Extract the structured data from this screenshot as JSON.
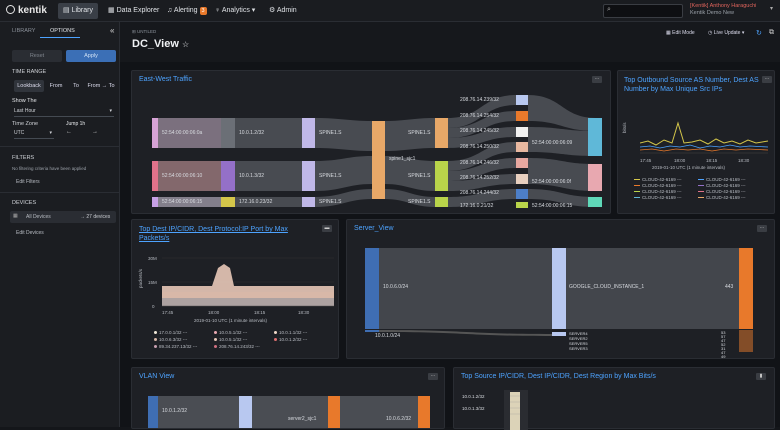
{
  "topbar": {
    "logo": "kentik",
    "nav": [
      {
        "label": "Library"
      },
      {
        "label": "Data Explorer"
      },
      {
        "label": "Alerting",
        "badge": "3"
      },
      {
        "label": "Analytics ▾"
      },
      {
        "label": "Admin"
      }
    ],
    "user_name": "[Kentik] Anthony Haraguchi",
    "user_org": "Kentik Demo New"
  },
  "sidebar": {
    "tabs": [
      "LIBRARY",
      "OPTIONS"
    ],
    "reset": "Reset",
    "apply": "Apply",
    "time_range": "TIME RANGE",
    "lookback": "Lookback",
    "from": "From",
    "to": "To",
    "from_to": "From → To",
    "show_the": "Show The",
    "last_hour": "Last Hour",
    "time_zone": "Time Zone",
    "jump": "Jump 1h",
    "utc": "UTC",
    "filters": "FILTERS",
    "no_filter": "No filtering criteria have been applied",
    "edit_filters": "Edit Filters",
    "devices": "DEVICES",
    "all_devices": "All Devices",
    "device_count": "27 devices",
    "edit_devices": "Edit Devices"
  },
  "header": {
    "breadcrumb": "UNTILED",
    "title": "DC_View",
    "edit_mode": "Edit Mode",
    "live_update": "Live Update"
  },
  "panels": {
    "east_west": {
      "title": "East-West Traffic",
      "nodes_l1": [
        "52:54:00:00:06:0a",
        "52:54:00:00:06:10",
        "52:54:00:00:06:15"
      ],
      "nodes_l2": [
        "10.0.1.2/32",
        "10.0.1.3/32",
        "172.16.0.23/32"
      ],
      "nodes_l3": [
        "SPINE1.S",
        "SPINE1.S",
        "SPINE1.S"
      ],
      "center": "spine1_sjc1",
      "nodes_l5": [
        "SPINE1.S",
        "SPINE1.S",
        "SPINE1.S"
      ],
      "nodes_l6": [
        "208.76.14.239/32",
        "208.76.14.254/32",
        "208.76.14.245/32",
        "208.76.14.250/32",
        "208.76.14.246/32",
        "208.76.14.252/32",
        "208.76.14.244/32",
        "172.16.0.21/32"
      ],
      "nodes_l7": [
        "52:54:00:00:06:09",
        "52:54:00:00:06:0f",
        "52:54:00:00:06:15"
      ]
    },
    "outbound": {
      "title": "Top Outbound Source AS Number, Dest AS Number by Max Unique Src IPs",
      "ylabel": "bits/s",
      "xticks": [
        "17:45",
        "18:00",
        "18:15",
        "18:30"
      ],
      "xlabel": "2019-01-10 UTC (1 minute intervals)",
      "legend": [
        "CLOUD-42-6169 ---",
        "CLOUD-42-6169 ---",
        "CLOUD-42-6169 ---",
        "CLOUD-42-6169 ---",
        "CLOUD-42-6169 ---",
        "CLOUD-42-6169 ---",
        "CLOUD-42-6169 ---",
        "CLOUD-42-6169 ---"
      ]
    },
    "dest_ip": {
      "title": "Top Dest IP/CIDR, Dest Protocol:IP Port by Max Packets/s",
      "ylabel": "packets/s",
      "yticks": [
        "30M",
        "15M",
        "0"
      ],
      "xticks": [
        "17:45",
        "18:00",
        "18:15",
        "18:30"
      ],
      "xlabel": "2019-01-10 UTC (1 minute intervals)",
      "legend": [
        "17.0.0.1/32 ---",
        "10.0.5.1/32 ---",
        "10.0.1.1/32 ---",
        "10.0.6.3/32 ---",
        "10.0.5.1/32 ---",
        "10.0.1.2/32 ---",
        "89.34.237.13/32 ---",
        "208.76.14.243/32 ---"
      ]
    },
    "server_view": {
      "title": "Server_View",
      "left_label": "10.0.6.0/24",
      "left_small": "10.0.1.0/24",
      "mid_label": "GOOGLE_CLOUD_INSTANCE_1",
      "right_label": "443",
      "small_labels": [
        "SERVER4",
        "SERVER2",
        "SERVER5",
        "SERVER3"
      ],
      "right_small": [
        "53",
        "57",
        "47",
        "52",
        "31",
        "47",
        "49"
      ]
    },
    "vlan": {
      "title": "VLAN View",
      "n1": "10.0.1.2/32",
      "n2": "server2_sjc1",
      "n3": "10.0.6.2/32"
    },
    "source_ip": {
      "title": "Top Source IP/CIDR, Dest IP/CIDR, Dest Region by Max Bits/s",
      "labels": [
        "10.0.1.2/32",
        "10.0.1.3/32"
      ]
    }
  },
  "colors": {
    "accent": "#4da3ff",
    "orange": "#e8792b"
  }
}
